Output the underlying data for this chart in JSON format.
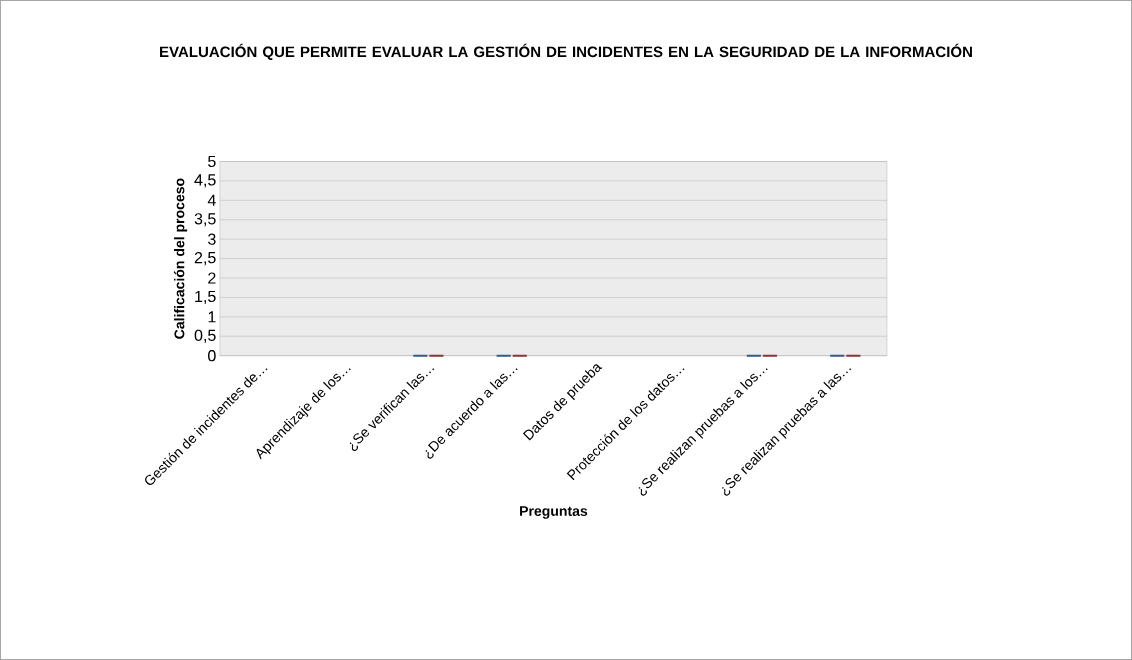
{
  "chart_data": {
    "type": "bar",
    "title": "EVALUACIÓN QUE PERMITE EVALUAR LA GESTIÓN DE INCIDENTES EN LA SEGURIDAD DE LA INFORMACIÓN",
    "xlabel": "Preguntas",
    "ylabel": "Calificación del proceso",
    "categories": [
      "Gestión de incidentes de…",
      "Aprendizaje de los…",
      "¿Se verifican las…",
      "¿De acuerdo a las…",
      "Datos de prueba",
      "Protección de los datos…",
      "¿Se realizan pruebas a los…",
      "¿Se realizan pruebas a las…"
    ],
    "series": [
      {
        "color": "#4f81bd",
        "values": [
          null,
          null,
          0,
          0,
          null,
          null,
          0,
          0
        ]
      },
      {
        "color": "#c0504d",
        "values": [
          null,
          null,
          0,
          0,
          null,
          null,
          0,
          0
        ]
      }
    ],
    "ylim": [
      0,
      5
    ],
    "yticks": [
      0,
      {
        "value": 0.5,
        "label": "0,5"
      },
      1,
      {
        "value": 1.5,
        "label": "1,5"
      },
      2,
      {
        "value": 2.5,
        "label": "2,5"
      },
      3,
      {
        "value": 3.5,
        "label": "3,5"
      },
      4,
      {
        "value": 4.5,
        "label": "4,5"
      },
      5
    ],
    "grid": "y"
  }
}
